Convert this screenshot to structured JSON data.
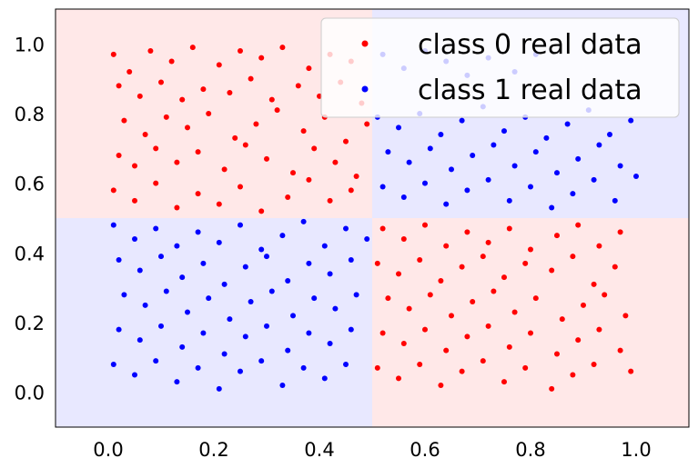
{
  "chart_data": {
    "type": "scatter",
    "title": "",
    "xlabel": "",
    "ylabel": "",
    "xlim": [
      -0.1,
      1.1
    ],
    "ylim": [
      -0.1,
      1.1
    ],
    "xticks": [
      "0.0",
      "0.2",
      "0.4",
      "0.6",
      "0.8",
      "1.0"
    ],
    "yticks": [
      "0.0",
      "0.2",
      "0.4",
      "0.6",
      "0.8",
      "1.0"
    ],
    "grid": false,
    "legend_placement": "upper-right",
    "background_regions": [
      {
        "class": "class 0",
        "x": [
          -0.1,
          0.5
        ],
        "y": [
          0.5,
          1.1
        ],
        "color": "#ffe8e8"
      },
      {
        "class": "class 0",
        "x": [
          0.5,
          1.1
        ],
        "y": [
          -0.1,
          0.5
        ],
        "color": "#ffe8e8"
      },
      {
        "class": "class 1",
        "x": [
          -0.1,
          0.5
        ],
        "y": [
          -0.1,
          0.5
        ],
        "color": "#e8e8ff"
      },
      {
        "class": "class 1",
        "x": [
          0.5,
          1.1
        ],
        "y": [
          0.5,
          1.1
        ],
        "color": "#e8e8ff"
      }
    ],
    "series": [
      {
        "name": "class 0 real data",
        "color": "#ff0000",
        "points": [
          [
            0.01,
            0.97
          ],
          [
            0.04,
            0.92
          ],
          [
            0.08,
            0.98
          ],
          [
            0.12,
            0.95
          ],
          [
            0.16,
            0.99
          ],
          [
            0.21,
            0.94
          ],
          [
            0.25,
            0.98
          ],
          [
            0.29,
            0.96
          ],
          [
            0.33,
            0.99
          ],
          [
            0.38,
            0.93
          ],
          [
            0.42,
            0.97
          ],
          [
            0.46,
            0.95
          ],
          [
            0.02,
            0.88
          ],
          [
            0.06,
            0.85
          ],
          [
            0.1,
            0.89
          ],
          [
            0.14,
            0.84
          ],
          [
            0.18,
            0.87
          ],
          [
            0.23,
            0.86
          ],
          [
            0.27,
            0.9
          ],
          [
            0.31,
            0.84
          ],
          [
            0.36,
            0.88
          ],
          [
            0.4,
            0.85
          ],
          [
            0.44,
            0.89
          ],
          [
            0.48,
            0.83
          ],
          [
            0.03,
            0.78
          ],
          [
            0.07,
            0.74
          ],
          [
            0.11,
            0.79
          ],
          [
            0.15,
            0.76
          ],
          [
            0.19,
            0.8
          ],
          [
            0.24,
            0.73
          ],
          [
            0.28,
            0.77
          ],
          [
            0.32,
            0.81
          ],
          [
            0.37,
            0.75
          ],
          [
            0.41,
            0.79
          ],
          [
            0.45,
            0.72
          ],
          [
            0.49,
            0.77
          ],
          [
            0.02,
            0.68
          ],
          [
            0.05,
            0.65
          ],
          [
            0.09,
            0.7
          ],
          [
            0.13,
            0.66
          ],
          [
            0.17,
            0.69
          ],
          [
            0.22,
            0.64
          ],
          [
            0.26,
            0.71
          ],
          [
            0.3,
            0.67
          ],
          [
            0.35,
            0.63
          ],
          [
            0.39,
            0.7
          ],
          [
            0.43,
            0.66
          ],
          [
            0.47,
            0.62
          ],
          [
            0.01,
            0.58
          ],
          [
            0.05,
            0.55
          ],
          [
            0.09,
            0.6
          ],
          [
            0.13,
            0.53
          ],
          [
            0.17,
            0.57
          ],
          [
            0.21,
            0.54
          ],
          [
            0.25,
            0.59
          ],
          [
            0.29,
            0.52
          ],
          [
            0.34,
            0.56
          ],
          [
            0.38,
            0.61
          ],
          [
            0.42,
            0.55
          ],
          [
            0.46,
            0.58
          ],
          [
            0.52,
            0.47
          ],
          [
            0.56,
            0.44
          ],
          [
            0.6,
            0.48
          ],
          [
            0.64,
            0.42
          ],
          [
            0.68,
            0.46
          ],
          [
            0.72,
            0.43
          ],
          [
            0.76,
            0.47
          ],
          [
            0.8,
            0.41
          ],
          [
            0.85,
            0.45
          ],
          [
            0.89,
            0.48
          ],
          [
            0.93,
            0.42
          ],
          [
            0.97,
            0.46
          ],
          [
            0.51,
            0.37
          ],
          [
            0.55,
            0.34
          ],
          [
            0.59,
            0.38
          ],
          [
            0.63,
            0.32
          ],
          [
            0.67,
            0.36
          ],
          [
            0.71,
            0.39
          ],
          [
            0.75,
            0.33
          ],
          [
            0.79,
            0.37
          ],
          [
            0.84,
            0.35
          ],
          [
            0.88,
            0.39
          ],
          [
            0.92,
            0.31
          ],
          [
            0.96,
            0.36
          ],
          [
            0.53,
            0.27
          ],
          [
            0.57,
            0.24
          ],
          [
            0.61,
            0.28
          ],
          [
            0.65,
            0.22
          ],
          [
            0.69,
            0.26
          ],
          [
            0.73,
            0.29
          ],
          [
            0.77,
            0.23
          ],
          [
            0.81,
            0.27
          ],
          [
            0.86,
            0.21
          ],
          [
            0.9,
            0.25
          ],
          [
            0.94,
            0.28
          ],
          [
            0.98,
            0.22
          ],
          [
            0.52,
            0.17
          ],
          [
            0.56,
            0.14
          ],
          [
            0.6,
            0.18
          ],
          [
            0.64,
            0.12
          ],
          [
            0.68,
            0.16
          ],
          [
            0.72,
            0.19
          ],
          [
            0.76,
            0.13
          ],
          [
            0.8,
            0.17
          ],
          [
            0.85,
            0.11
          ],
          [
            0.89,
            0.15
          ],
          [
            0.93,
            0.18
          ],
          [
            0.97,
            0.12
          ],
          [
            0.51,
            0.07
          ],
          [
            0.55,
            0.04
          ],
          [
            0.59,
            0.08
          ],
          [
            0.63,
            0.02
          ],
          [
            0.67,
            0.06
          ],
          [
            0.71,
            0.09
          ],
          [
            0.75,
            0.03
          ],
          [
            0.79,
            0.07
          ],
          [
            0.84,
            0.01
          ],
          [
            0.88,
            0.05
          ],
          [
            0.92,
            0.08
          ],
          [
            0.99,
            0.06
          ]
        ]
      },
      {
        "name": "class 1 real data",
        "color": "#0000ff",
        "points": [
          [
            0.52,
            0.97
          ],
          [
            0.56,
            0.93
          ],
          [
            0.6,
            0.98
          ],
          [
            0.64,
            0.95
          ],
          [
            0.68,
            0.91
          ],
          [
            0.72,
            0.96
          ],
          [
            0.77,
            0.92
          ],
          [
            0.81,
            0.97
          ],
          [
            0.51,
            0.79
          ],
          [
            0.55,
            0.76
          ],
          [
            0.59,
            0.8
          ],
          [
            0.63,
            0.74
          ],
          [
            0.67,
            0.78
          ],
          [
            0.71,
            0.82
          ],
          [
            0.75,
            0.75
          ],
          [
            0.79,
            0.79
          ],
          [
            0.83,
            0.73
          ],
          [
            0.87,
            0.77
          ],
          [
            0.91,
            0.81
          ],
          [
            0.95,
            0.74
          ],
          [
            0.99,
            0.78
          ],
          [
            0.53,
            0.69
          ],
          [
            0.57,
            0.66
          ],
          [
            0.61,
            0.7
          ],
          [
            0.65,
            0.64
          ],
          [
            0.69,
            0.68
          ],
          [
            0.73,
            0.71
          ],
          [
            0.77,
            0.65
          ],
          [
            0.81,
            0.69
          ],
          [
            0.85,
            0.63
          ],
          [
            0.89,
            0.67
          ],
          [
            0.93,
            0.71
          ],
          [
            0.97,
            0.65
          ],
          [
            0.52,
            0.59
          ],
          [
            0.56,
            0.56
          ],
          [
            0.6,
            0.6
          ],
          [
            0.64,
            0.54
          ],
          [
            0.68,
            0.58
          ],
          [
            0.72,
            0.61
          ],
          [
            0.76,
            0.55
          ],
          [
            0.8,
            0.59
          ],
          [
            0.84,
            0.53
          ],
          [
            0.88,
            0.57
          ],
          [
            0.92,
            0.61
          ],
          [
            0.96,
            0.55
          ],
          [
            1.0,
            0.62
          ],
          [
            0.01,
            0.48
          ],
          [
            0.05,
            0.44
          ],
          [
            0.09,
            0.47
          ],
          [
            0.13,
            0.42
          ],
          [
            0.17,
            0.46
          ],
          [
            0.21,
            0.43
          ],
          [
            0.25,
            0.48
          ],
          [
            0.29,
            0.41
          ],
          [
            0.33,
            0.45
          ],
          [
            0.37,
            0.49
          ],
          [
            0.41,
            0.42
          ],
          [
            0.45,
            0.47
          ],
          [
            0.49,
            0.44
          ],
          [
            0.02,
            0.38
          ],
          [
            0.06,
            0.35
          ],
          [
            0.1,
            0.39
          ],
          [
            0.14,
            0.33
          ],
          [
            0.18,
            0.37
          ],
          [
            0.22,
            0.31
          ],
          [
            0.26,
            0.36
          ],
          [
            0.3,
            0.39
          ],
          [
            0.34,
            0.32
          ],
          [
            0.38,
            0.37
          ],
          [
            0.42,
            0.34
          ],
          [
            0.46,
            0.38
          ],
          [
            0.03,
            0.28
          ],
          [
            0.07,
            0.25
          ],
          [
            0.11,
            0.29
          ],
          [
            0.15,
            0.23
          ],
          [
            0.19,
            0.27
          ],
          [
            0.23,
            0.21
          ],
          [
            0.27,
            0.26
          ],
          [
            0.31,
            0.29
          ],
          [
            0.35,
            0.22
          ],
          [
            0.39,
            0.27
          ],
          [
            0.43,
            0.24
          ],
          [
            0.47,
            0.28
          ],
          [
            0.02,
            0.18
          ],
          [
            0.06,
            0.15
          ],
          [
            0.1,
            0.19
          ],
          [
            0.14,
            0.13
          ],
          [
            0.18,
            0.17
          ],
          [
            0.22,
            0.11
          ],
          [
            0.26,
            0.16
          ],
          [
            0.3,
            0.19
          ],
          [
            0.34,
            0.12
          ],
          [
            0.38,
            0.17
          ],
          [
            0.42,
            0.14
          ],
          [
            0.46,
            0.18
          ],
          [
            0.01,
            0.08
          ],
          [
            0.05,
            0.05
          ],
          [
            0.09,
            0.09
          ],
          [
            0.13,
            0.03
          ],
          [
            0.17,
            0.07
          ],
          [
            0.21,
            0.01
          ],
          [
            0.25,
            0.06
          ],
          [
            0.29,
            0.09
          ],
          [
            0.33,
            0.02
          ],
          [
            0.37,
            0.07
          ],
          [
            0.41,
            0.04
          ],
          [
            0.45,
            0.08
          ]
        ]
      }
    ]
  }
}
